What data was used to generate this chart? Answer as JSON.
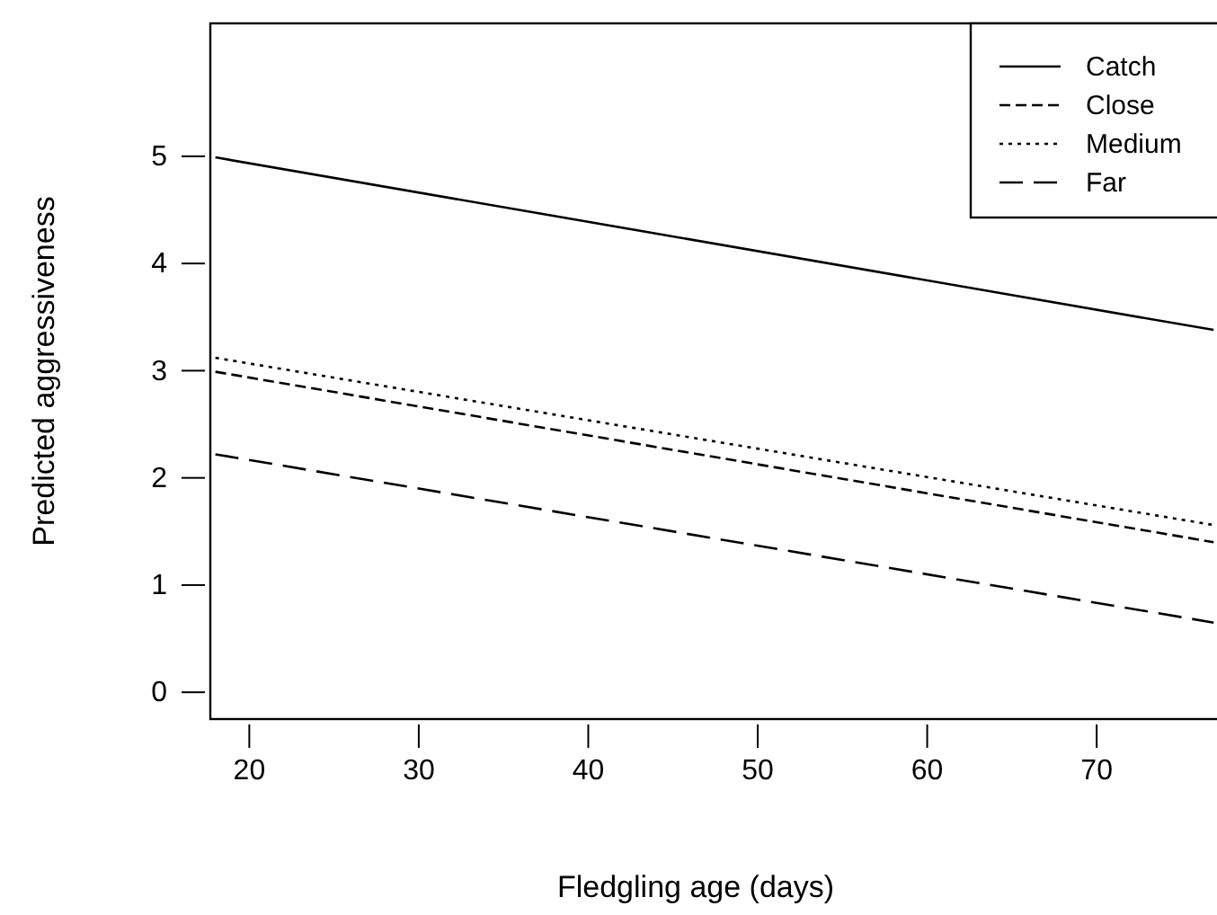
{
  "chart_data": {
    "type": "line",
    "xlabel": "Fledgling age (days)",
    "ylabel": "Predicted aggressiveness",
    "xlim": [
      17.7,
      77.1
    ],
    "ylim": [
      -0.25,
      6.24
    ],
    "xticks": [
      20,
      30,
      40,
      50,
      60,
      70
    ],
    "yticks": [
      0,
      1,
      2,
      3,
      4,
      5
    ],
    "x": [
      18,
      76.9
    ],
    "grid": false,
    "legend": "top right",
    "marker": "none",
    "series": [
      {
        "name": "Catch",
        "color": "#000000",
        "line_style": "solid",
        "values": [
          4.99,
          3.38
        ]
      },
      {
        "name": "Close",
        "color": "#000000",
        "line_style": "dashed",
        "values": [
          2.99,
          1.4
        ]
      },
      {
        "name": "Medium",
        "color": "#000000",
        "line_style": "dotted",
        "values": [
          3.12,
          1.56
        ]
      },
      {
        "name": "Far",
        "color": "#000000",
        "line_style": "longdash",
        "values": [
          2.22,
          0.65
        ]
      }
    ]
  }
}
